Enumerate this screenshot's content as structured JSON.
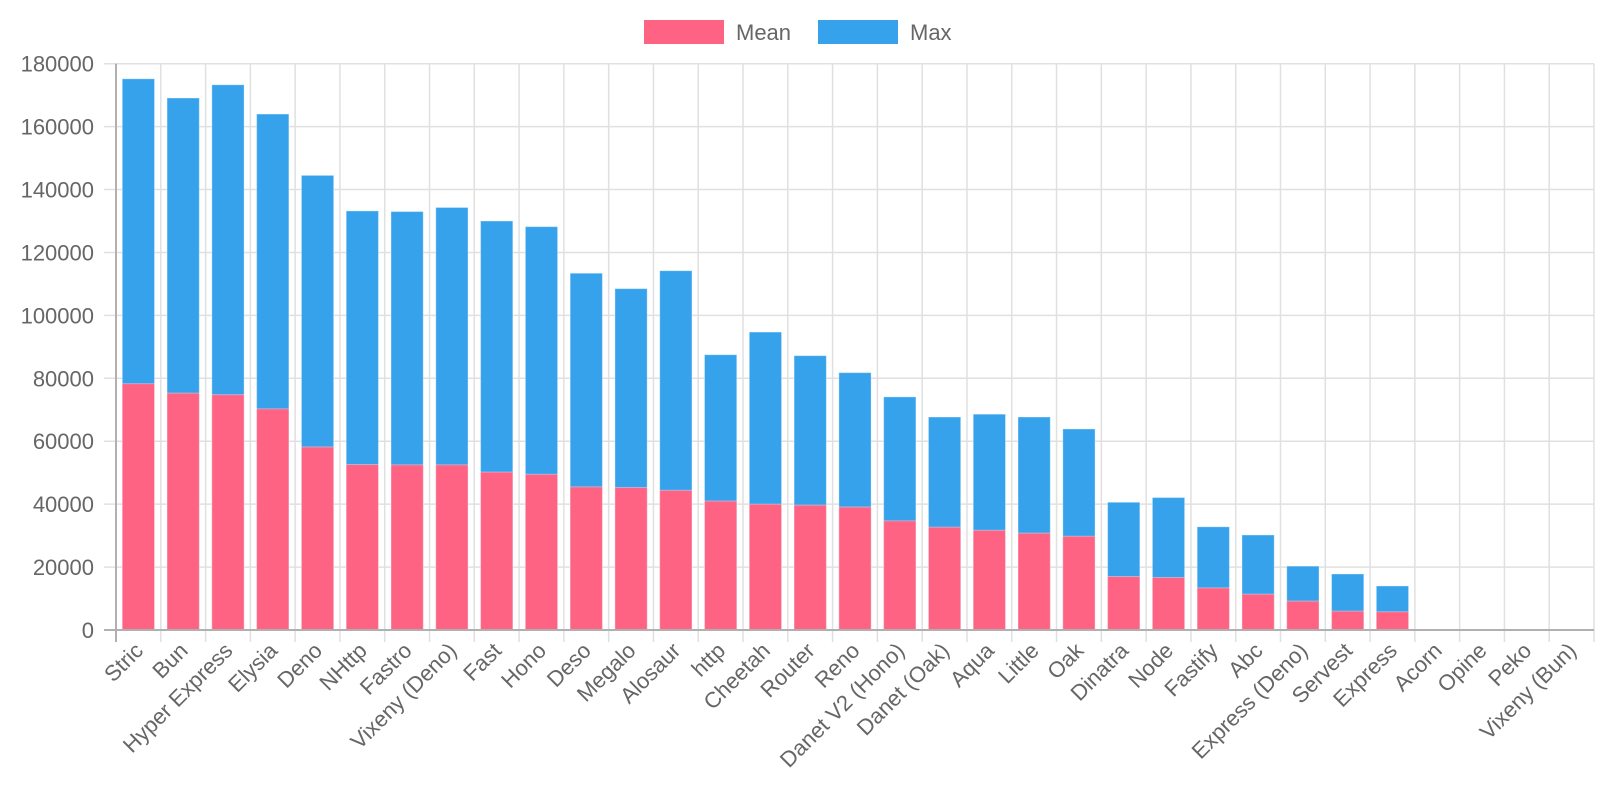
{
  "chart_data": {
    "type": "bar",
    "title": "",
    "xlabel": "",
    "ylabel": "",
    "ylim": [
      0,
      180000
    ],
    "ytick_step": 20000,
    "grid": true,
    "legend_position": "top-center",
    "overlapping_bars": true,
    "categories": [
      "Stric",
      "Bun",
      "Hyper Express",
      "Elysia",
      "Deno",
      "NHttp",
      "Fastro",
      "Vixeny (Deno)",
      "Fast",
      "Hono",
      "Deso",
      "Megalo",
      "Alosaur",
      "http",
      "Cheetah",
      "Router",
      "Reno",
      "Danet V2 (Hono)",
      "Danet (Oak)",
      "Aqua",
      "Little",
      "Oak",
      "Dinatra",
      "Node",
      "Fastify",
      "Abc",
      "Express (Deno)",
      "Servest",
      "Express",
      "Acorn",
      "Opine",
      "Peko",
      "Vixeny (Bun)"
    ],
    "series": [
      {
        "name": "Mean",
        "color": "#FF6384",
        "values": [
          78300,
          75300,
          74800,
          70300,
          58200,
          52600,
          52500,
          52500,
          50200,
          49500,
          45500,
          45300,
          44400,
          41000,
          40000,
          39700,
          39100,
          34700,
          32700,
          31700,
          30800,
          29800,
          17000,
          16700,
          13400,
          11400,
          9200,
          6000,
          5800,
          0,
          0,
          0,
          0
        ]
      },
      {
        "name": "Max",
        "color": "#36A2EB",
        "values": [
          175200,
          169100,
          173300,
          164000,
          144500,
          133200,
          133000,
          134300,
          130000,
          128200,
          113400,
          108500,
          114200,
          87500,
          94700,
          87200,
          81800,
          74100,
          67700,
          68600,
          67700,
          63900,
          40600,
          42100,
          32800,
          30200,
          20300,
          17800,
          14000,
          0,
          0,
          0,
          0
        ]
      }
    ]
  }
}
